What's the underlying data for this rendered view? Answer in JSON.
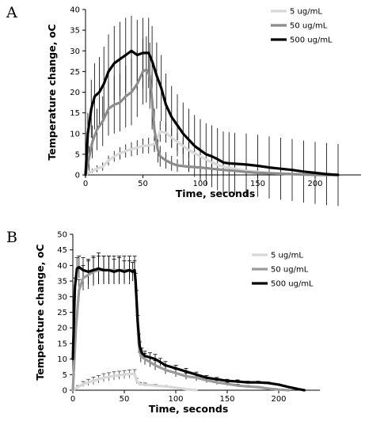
{
  "chart_data": [
    {
      "type": "line",
      "panel_label": "A",
      "xlabel": "Time, seconds",
      "ylabel": "Temperature change, oC",
      "xlim": [
        0,
        240
      ],
      "ylim": [
        0,
        40
      ],
      "xticks": [
        0,
        50,
        100,
        150,
        200
      ],
      "yticks": [
        0,
        5,
        10,
        15,
        20,
        25,
        30,
        35,
        40
      ],
      "legend_position": "top-right",
      "error_bars": true,
      "series": [
        {
          "name": "5 ug/mL",
          "color": "#d8d8d8",
          "x": [
            0,
            3,
            6,
            10,
            15,
            20,
            25,
            30,
            35,
            40,
            45,
            50,
            55,
            60,
            65,
            70,
            75,
            80,
            85,
            90,
            100,
            110,
            120,
            130,
            140,
            150,
            160,
            170,
            180,
            190,
            200,
            210,
            220
          ],
          "values": [
            0,
            0.5,
            1,
            1.5,
            2,
            3.5,
            4.5,
            5.2,
            5.8,
            6.2,
            6.6,
            7,
            7.1,
            7.5,
            10.5,
            10.2,
            9,
            8,
            7,
            6,
            4.5,
            3,
            2,
            1.5,
            1,
            0.8,
            0.5,
            0.3,
            0.2,
            0.1,
            0,
            0,
            0
          ],
          "err": [
            0,
            0.3,
            0.5,
            0.8,
            1,
            1.2,
            1.3,
            1.5,
            1.6,
            1.7,
            1.8,
            1.8,
            1.9,
            2,
            2.5,
            2.4,
            2.3,
            2.2,
            2,
            1.8,
            1.5,
            1.2,
            1,
            0.8,
            0.6,
            0.5,
            0.4,
            0.3,
            0.2,
            0.1,
            0,
            0,
            0
          ]
        },
        {
          "name": "50 ug/mL",
          "color": "#8c8c8c",
          "x": [
            0,
            3,
            6,
            10,
            15,
            20,
            25,
            30,
            35,
            40,
            45,
            50,
            53,
            56,
            58,
            60,
            63,
            65,
            70,
            75,
            80,
            90,
            100,
            110,
            120,
            130,
            140,
            150,
            160,
            180,
            200,
            220
          ],
          "values": [
            0,
            4,
            8,
            11,
            13,
            16,
            17,
            17.5,
            19,
            20,
            22,
            25,
            25.5,
            24,
            18,
            11,
            6,
            4.5,
            3.5,
            2.8,
            2.3,
            2,
            1.8,
            1.5,
            1.2,
            1,
            0.7,
            0.5,
            0.4,
            0.2,
            0,
            0
          ],
          "err": [
            0,
            3,
            4,
            5,
            6,
            6.5,
            7,
            7,
            7.5,
            8,
            8,
            8,
            8,
            8,
            7,
            5,
            3,
            2.5,
            2,
            1.8,
            1.5,
            1.3,
            1.2,
            1,
            0.8,
            0.7,
            0.5,
            0.4,
            0.3,
            0.2,
            0,
            0
          ]
        },
        {
          "name": "500 ug/mL",
          "color": "#000000",
          "x": [
            0,
            2,
            5,
            8,
            12,
            16,
            20,
            25,
            30,
            35,
            40,
            45,
            50,
            55,
            58,
            62,
            66,
            70,
            75,
            80,
            85,
            90,
            95,
            100,
            105,
            110,
            115,
            120,
            125,
            130,
            140,
            150,
            160,
            170,
            180,
            190,
            200,
            210,
            220
          ],
          "values": [
            0,
            10,
            16,
            19,
            20,
            22,
            25,
            27,
            28,
            29,
            30,
            29,
            29.5,
            29.5,
            27.5,
            24,
            21,
            17,
            14,
            12,
            10,
            8.5,
            7,
            6,
            5,
            4.5,
            3.8,
            3,
            2.8,
            2.7,
            2.5,
            2.2,
            1.8,
            1.5,
            1.2,
            0.8,
            0.5,
            0.2,
            0
          ],
          "err": [
            0,
            5,
            7,
            8,
            8.5,
            9,
            9,
            9,
            9,
            9,
            8.5,
            8.5,
            8.5,
            8.5,
            8.5,
            8,
            8,
            7.5,
            7.5,
            7.5,
            7.5,
            7.5,
            7.5,
            7.5,
            7.5,
            7.5,
            7.5,
            7.5,
            7.5,
            7.5,
            7.5,
            7.5,
            7.5,
            7.5,
            7.5,
            7.5,
            7.5,
            7.5,
            7.5
          ]
        }
      ]
    },
    {
      "type": "line",
      "panel_label": "B",
      "xlabel": "Time, seconds",
      "ylabel": "Temperature change, oC",
      "xlim": [
        0,
        240
      ],
      "ylim": [
        0,
        50
      ],
      "xticks": [
        0,
        50,
        100,
        150,
        200
      ],
      "yticks": [
        0,
        5,
        10,
        15,
        20,
        25,
        30,
        35,
        40,
        45,
        50
      ],
      "legend_position": "top-right",
      "error_bars": true,
      "series": [
        {
          "name": "5 ug/mL",
          "color": "#d8d8d8",
          "x": [
            0,
            5,
            10,
            15,
            20,
            25,
            30,
            35,
            40,
            45,
            50,
            55,
            60,
            62,
            65,
            70,
            80,
            90,
            100,
            110,
            120
          ],
          "values": [
            0,
            1,
            2,
            2.5,
            3,
            3.5,
            4,
            4.3,
            4.6,
            4.8,
            5,
            5.2,
            5.3,
            3,
            2,
            1.8,
            1.5,
            1.2,
            0.8,
            0.3,
            0
          ],
          "err": [
            0,
            0.5,
            0.8,
            1,
            1.2,
            1.2,
            1.3,
            1.3,
            1.3,
            1.3,
            1.3,
            1.3,
            1.3,
            0.8,
            0.5,
            0.5,
            0.4,
            0.3,
            0.2,
            0.1,
            0
          ]
        },
        {
          "name": "50 ug/mL",
          "color": "#9a9a9a",
          "x": [
            0,
            3,
            6,
            10,
            15,
            20,
            25,
            30,
            35,
            40,
            45,
            50,
            55,
            60,
            62,
            64,
            66,
            70,
            75,
            80,
            90,
            100,
            110,
            120,
            130,
            140,
            150,
            160,
            170,
            180,
            190,
            200,
            210
          ],
          "values": [
            0,
            20,
            32,
            36,
            37,
            38,
            38.5,
            38.5,
            38.5,
            38.5,
            38.5,
            38.5,
            38.5,
            38.5,
            28,
            15,
            11,
            10,
            9,
            8,
            6.5,
            5.5,
            4.5,
            4,
            3.2,
            2.5,
            2,
            1.5,
            1.2,
            1,
            0.5,
            0.2,
            0
          ],
          "err": [
            0,
            3,
            3.5,
            4,
            4.5,
            4.5,
            4.5,
            4.5,
            4.5,
            4.5,
            4.5,
            4.5,
            4.5,
            4.5,
            4,
            3,
            2,
            1.8,
            1.5,
            1.5,
            1.3,
            1.2,
            1,
            1,
            0.8,
            0.7,
            0.5,
            0.4,
            0.3,
            0.2,
            0.1,
            0,
            0
          ]
        },
        {
          "name": "500 ug/mL",
          "color": "#000000",
          "x": [
            0,
            2,
            4,
            6,
            10,
            15,
            20,
            25,
            30,
            35,
            40,
            45,
            50,
            55,
            58,
            60,
            61,
            63,
            65,
            67,
            70,
            75,
            80,
            85,
            90,
            100,
            110,
            120,
            130,
            140,
            150,
            160,
            170,
            180,
            190,
            200,
            210,
            220,
            225
          ],
          "values": [
            10,
            33,
            39,
            39.5,
            38.5,
            38,
            38.5,
            39,
            38.5,
            38.5,
            38,
            38.5,
            38,
            38.5,
            38,
            38.5,
            35,
            22,
            14,
            12,
            11,
            10.5,
            10,
            9,
            8,
            7,
            6,
            5,
            4,
            3.5,
            3,
            2.8,
            2.5,
            2.5,
            2.3,
            1.8,
            1,
            0.3,
            0
          ],
          "err": [
            0,
            3,
            3.5,
            3.5,
            4,
            4,
            4.5,
            5,
            4.5,
            4.5,
            4,
            4,
            3.5,
            3,
            3,
            3,
            2.5,
            2,
            1.5,
            1.5,
            1.5,
            1.5,
            1.5,
            1.2,
            1.2,
            1,
            1,
            0.8,
            0.7,
            0.6,
            0.5,
            0.5,
            0.4,
            0.4,
            0.3,
            0.2,
            0.1,
            0,
            0
          ]
        }
      ]
    }
  ]
}
